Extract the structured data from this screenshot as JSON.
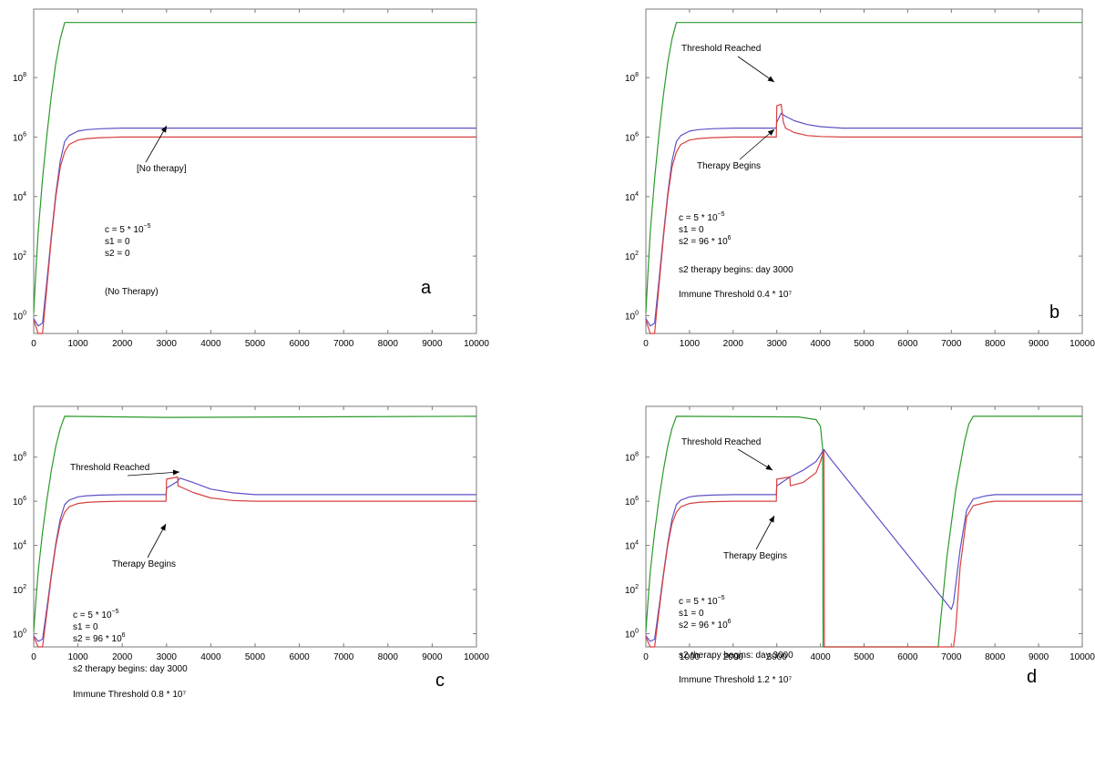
{
  "colors": {
    "green": "#2a9a2a",
    "blue": "#5c52c6",
    "red": "#d84040",
    "axis": "#7a7a7a",
    "text": "#000000"
  },
  "chart_data": [
    {
      "type": "line",
      "panel_label": "a",
      "x_ticks": [
        "0",
        "1000",
        "2000",
        "3000",
        "4000",
        "5000",
        "6000",
        "7000",
        "8000",
        "9000",
        "10000"
      ],
      "xlim": [
        0,
        10000
      ],
      "y_scale": "log10",
      "ylim_exponent": [
        -0.6,
        10.3
      ],
      "y_ticks": [
        {
          "base": "10",
          "exp": "0"
        },
        {
          "base": "10",
          "exp": "2"
        },
        {
          "base": "10",
          "exp": "4"
        },
        {
          "base": "10",
          "exp": "6"
        },
        {
          "base": "10",
          "exp": "8"
        }
      ],
      "params": [
        {
          "pre": "c = 5 * 10",
          "sup": "−5"
        },
        {
          "pre": "s1 = 0",
          "sup": ""
        },
        {
          "pre": "s2 = 0",
          "sup": ""
        }
      ],
      "notes": [
        "(No Therapy)"
      ],
      "arrow_labels": [
        "[No therapy]"
      ],
      "series": [
        {
          "color": "green",
          "x": [
            0,
            50,
            100,
            200,
            300,
            400,
            500,
            600,
            700,
            10000
          ],
          "y": [
            0.1,
            1.5,
            2.8,
            4.6,
            6.1,
            7.4,
            8.5,
            9.3,
            9.85,
            9.85
          ]
        },
        {
          "color": "blue",
          "x": [
            0,
            100,
            200,
            300,
            400,
            500,
            600,
            700,
            800,
            1000,
            1200,
            1500,
            2000,
            10000
          ],
          "y": [
            -0.1,
            -0.35,
            -0.25,
            1.2,
            2.7,
            4.1,
            5.2,
            5.85,
            6.05,
            6.2,
            6.25,
            6.28,
            6.3,
            6.3
          ]
        },
        {
          "color": "red",
          "x": [
            0,
            100,
            150,
            200,
            300,
            400,
            500,
            600,
            700,
            800,
            1000,
            1200,
            1500,
            2000,
            10000
          ],
          "y": [
            -0.15,
            -0.6,
            -0.8,
            -0.6,
            1.0,
            2.6,
            4.0,
            5.0,
            5.5,
            5.75,
            5.9,
            5.95,
            5.98,
            6.0,
            6.0
          ]
        }
      ]
    },
    {
      "type": "line",
      "panel_label": "b",
      "x_ticks": [
        "0",
        "1000",
        "2000",
        "3000",
        "4000",
        "5000",
        "6000",
        "7000",
        "8000",
        "9000",
        "10000"
      ],
      "xlim": [
        0,
        10000
      ],
      "y_scale": "log10",
      "ylim_exponent": [
        -0.6,
        10.3
      ],
      "y_ticks": [
        {
          "base": "10",
          "exp": "0"
        },
        {
          "base": "10",
          "exp": "2"
        },
        {
          "base": "10",
          "exp": "4"
        },
        {
          "base": "10",
          "exp": "6"
        },
        {
          "base": "10",
          "exp": "8"
        }
      ],
      "params": [
        {
          "pre": "c = 5 * 10",
          "sup": "−5"
        },
        {
          "pre": "s1 = 0",
          "sup": ""
        },
        {
          "pre": "s2 = 96 * 10",
          "sup": "6"
        }
      ],
      "notes": [
        "s2 therapy begins: day 3000",
        "Immune Threshold 0.4 * 10⁷"
      ],
      "arrow_labels": [
        "Threshold Reached",
        "Therapy Begins"
      ],
      "series": [
        {
          "color": "green",
          "x": [
            0,
            50,
            100,
            200,
            300,
            400,
            500,
            600,
            700,
            10000
          ],
          "y": [
            0.1,
            1.5,
            2.8,
            4.6,
            6.1,
            7.4,
            8.5,
            9.3,
            9.85,
            9.85
          ]
        },
        {
          "color": "blue",
          "x": [
            0,
            100,
            200,
            300,
            400,
            500,
            600,
            700,
            800,
            1000,
            1200,
            1500,
            2000,
            2990,
            3000,
            3100,
            3200,
            3400,
            3700,
            4000,
            4500,
            10000
          ],
          "y": [
            -0.1,
            -0.35,
            -0.25,
            1.2,
            2.7,
            4.1,
            5.2,
            5.85,
            6.05,
            6.2,
            6.25,
            6.28,
            6.3,
            6.3,
            6.5,
            6.8,
            6.7,
            6.55,
            6.42,
            6.35,
            6.3,
            6.3
          ]
        },
        {
          "color": "red",
          "x": [
            0,
            100,
            150,
            200,
            300,
            400,
            500,
            600,
            700,
            800,
            1000,
            1200,
            1500,
            2000,
            2990,
            3000,
            3100,
            3150,
            3200,
            3400,
            3700,
            4000,
            4500,
            10000
          ],
          "y": [
            -0.15,
            -0.6,
            -0.8,
            -0.6,
            1.0,
            2.6,
            4.0,
            5.0,
            5.5,
            5.75,
            5.9,
            5.95,
            5.98,
            6.0,
            6.0,
            7.05,
            7.1,
            6.5,
            6.3,
            6.15,
            6.05,
            6.02,
            6.0,
            6.0
          ]
        }
      ]
    },
    {
      "type": "line",
      "panel_label": "c",
      "x_ticks": [
        "0",
        "1000",
        "2000",
        "3000",
        "4000",
        "5000",
        "6000",
        "7000",
        "8000",
        "9000",
        "10000"
      ],
      "xlim": [
        0,
        10000
      ],
      "y_scale": "log10",
      "ylim_exponent": [
        -0.6,
        10.3
      ],
      "y_ticks": [
        {
          "base": "10",
          "exp": "0"
        },
        {
          "base": "10",
          "exp": "2"
        },
        {
          "base": "10",
          "exp": "4"
        },
        {
          "base": "10",
          "exp": "6"
        },
        {
          "base": "10",
          "exp": "8"
        }
      ],
      "params": [
        {
          "pre": "c = 5 * 10",
          "sup": "−5"
        },
        {
          "pre": "s1 = 0",
          "sup": ""
        },
        {
          "pre": "s2 = 96 * 10",
          "sup": "6"
        }
      ],
      "notes": [
        "s2 therapy begins: day 3000",
        "Immune Threshold 0.8 * 10⁷"
      ],
      "arrow_labels": [
        "Threshold Reached",
        "Therapy Begins"
      ],
      "series": [
        {
          "color": "green",
          "x": [
            0,
            50,
            100,
            200,
            300,
            400,
            500,
            600,
            700,
            3000,
            10000
          ],
          "y": [
            0.1,
            1.5,
            2.8,
            4.6,
            6.1,
            7.4,
            8.5,
            9.3,
            9.85,
            9.8,
            9.85
          ]
        },
        {
          "color": "blue",
          "x": [
            0,
            100,
            200,
            300,
            400,
            500,
            600,
            700,
            800,
            1000,
            1200,
            1500,
            2000,
            2990,
            3000,
            3250,
            3300,
            3600,
            4000,
            4500,
            5000,
            10000
          ],
          "y": [
            -0.1,
            -0.35,
            -0.25,
            1.2,
            2.7,
            4.1,
            5.2,
            5.85,
            6.05,
            6.2,
            6.25,
            6.28,
            6.3,
            6.3,
            6.6,
            6.9,
            7.05,
            6.85,
            6.55,
            6.38,
            6.3,
            6.3
          ]
        },
        {
          "color": "red",
          "x": [
            0,
            100,
            150,
            200,
            300,
            400,
            500,
            600,
            700,
            800,
            1000,
            1200,
            1500,
            2000,
            2990,
            3000,
            3250,
            3260,
            3600,
            4000,
            4500,
            5000,
            10000
          ],
          "y": [
            -0.15,
            -0.6,
            -0.8,
            -0.6,
            1.0,
            2.6,
            4.0,
            5.0,
            5.5,
            5.75,
            5.9,
            5.95,
            5.98,
            6.0,
            6.0,
            7.0,
            7.1,
            6.7,
            6.4,
            6.15,
            6.03,
            6.0,
            6.0
          ]
        }
      ]
    },
    {
      "type": "line",
      "panel_label": "d",
      "x_ticks": [
        "0",
        "1000",
        "2000",
        "3000",
        "4000",
        "5000",
        "6000",
        "7000",
        "8000",
        "9000",
        "10000"
      ],
      "xlim": [
        0,
        10000
      ],
      "y_scale": "log10",
      "ylim_exponent": [
        -0.6,
        10.3
      ],
      "y_ticks": [
        {
          "base": "10",
          "exp": "0"
        },
        {
          "base": "10",
          "exp": "2"
        },
        {
          "base": "10",
          "exp": "4"
        },
        {
          "base": "10",
          "exp": "6"
        },
        {
          "base": "10",
          "exp": "8"
        }
      ],
      "params": [
        {
          "pre": "c = 5 * 10",
          "sup": "−5"
        },
        {
          "pre": "s1 = 0",
          "sup": ""
        },
        {
          "pre": "s2 = 96 * 10",
          "sup": "6"
        }
      ],
      "notes": [
        "s2 therapy begins: day 3000",
        "Immune Threshold 1.2 * 10⁷"
      ],
      "arrow_labels": [
        "Threshold Reached",
        "Therapy Begins"
      ],
      "series": [
        {
          "color": "green",
          "x": [
            0,
            50,
            100,
            200,
            300,
            400,
            500,
            600,
            700,
            3500,
            3900,
            4000,
            4050,
            4060,
            6700,
            6750,
            6900,
            7100,
            7300,
            7400,
            7500,
            10000
          ],
          "y": [
            0.1,
            1.5,
            2.8,
            4.6,
            6.1,
            7.4,
            8.5,
            9.3,
            9.85,
            9.82,
            9.7,
            9.4,
            8.4,
            -0.7,
            -0.7,
            0.5,
            3.5,
            6.5,
            8.7,
            9.5,
            9.85,
            9.85
          ]
        },
        {
          "color": "blue",
          "x": [
            0,
            100,
            200,
            300,
            400,
            500,
            600,
            700,
            800,
            1000,
            1200,
            1500,
            2000,
            2990,
            3000,
            3300,
            3600,
            3900,
            4000,
            4080,
            4200,
            7000,
            7050,
            7200,
            7350,
            7500,
            7800,
            8000,
            10000
          ],
          "y": [
            -0.1,
            -0.35,
            -0.25,
            1.2,
            2.7,
            4.1,
            5.2,
            5.85,
            6.05,
            6.2,
            6.25,
            6.28,
            6.3,
            6.3,
            6.7,
            7.1,
            7.4,
            7.8,
            8.1,
            8.35,
            8.0,
            1.1,
            1.4,
            3.8,
            5.6,
            6.1,
            6.25,
            6.3,
            6.3
          ]
        },
        {
          "color": "red",
          "x": [
            0,
            100,
            150,
            200,
            300,
            400,
            500,
            600,
            700,
            800,
            1000,
            1200,
            1500,
            2000,
            2990,
            3000,
            3300,
            3310,
            3600,
            3900,
            4000,
            4080,
            4090,
            7050,
            7100,
            7200,
            7350,
            7500,
            7800,
            8000,
            10000
          ],
          "y": [
            -0.15,
            -0.6,
            -0.8,
            -0.6,
            1.0,
            2.6,
            4.0,
            5.0,
            5.5,
            5.75,
            5.9,
            5.95,
            5.98,
            6.0,
            6.0,
            7.0,
            7.1,
            6.7,
            6.85,
            7.3,
            7.8,
            8.3,
            -0.7,
            -0.7,
            0.2,
            3.0,
            5.3,
            5.8,
            5.95,
            6.0,
            6.0
          ]
        }
      ]
    }
  ]
}
